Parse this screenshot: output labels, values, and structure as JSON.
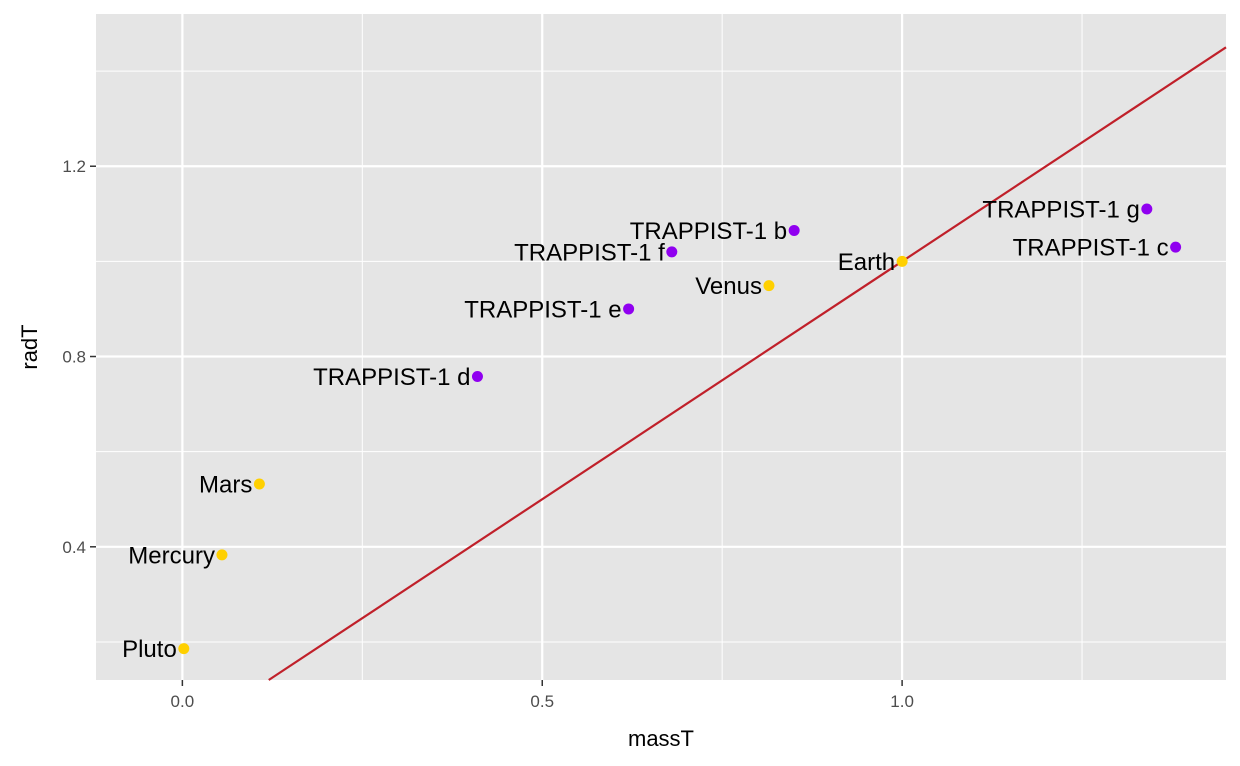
{
  "chart_data": {
    "type": "scatter",
    "xlabel": "massT",
    "ylabel": "radT",
    "xlim": [
      -0.12,
      1.45
    ],
    "ylim": [
      0.12,
      1.52
    ],
    "x_ticks": [
      0.0,
      0.5,
      1.0
    ],
    "x_tick_labels": [
      "0.0",
      "0.5",
      "1.0"
    ],
    "x_minor_ticks": [
      0.25,
      0.75,
      1.25
    ],
    "y_ticks": [
      0.4,
      0.8,
      1.2
    ],
    "y_tick_labels": [
      "0.4",
      "0.8",
      "1.2"
    ],
    "y_minor_ticks": [
      0.2,
      0.6,
      1.0,
      1.4
    ],
    "grid": true,
    "colors": {
      "panel_background": "#e5e5e5",
      "grid": "#ffffff",
      "solar_system": "#ffd000",
      "trappist": "#9000f0",
      "reference_line": "#c0202a"
    },
    "reference_line": {
      "slope": 1,
      "intercept": 0
    },
    "points": [
      {
        "label": "Pluto",
        "x": 0.002,
        "y": 0.186,
        "group": "solar_system"
      },
      {
        "label": "Mercury",
        "x": 0.055,
        "y": 0.383,
        "group": "solar_system"
      },
      {
        "label": "Mars",
        "x": 0.107,
        "y": 0.532,
        "group": "solar_system"
      },
      {
        "label": "Venus",
        "x": 0.815,
        "y": 0.949,
        "group": "solar_system"
      },
      {
        "label": "Earth",
        "x": 1.0,
        "y": 1.0,
        "group": "solar_system"
      },
      {
        "label": "TRAPPIST-1 d",
        "x": 0.41,
        "y": 0.758,
        "group": "trappist"
      },
      {
        "label": "TRAPPIST-1 e",
        "x": 0.62,
        "y": 0.9,
        "group": "trappist"
      },
      {
        "label": "TRAPPIST-1 f",
        "x": 0.68,
        "y": 1.02,
        "group": "trappist"
      },
      {
        "label": "TRAPPIST-1 b",
        "x": 0.85,
        "y": 1.065,
        "group": "trappist"
      },
      {
        "label": "TRAPPIST-1 g",
        "x": 1.34,
        "y": 1.11,
        "group": "trappist"
      },
      {
        "label": "TRAPPIST-1 c",
        "x": 1.38,
        "y": 1.03,
        "group": "trappist"
      }
    ]
  }
}
